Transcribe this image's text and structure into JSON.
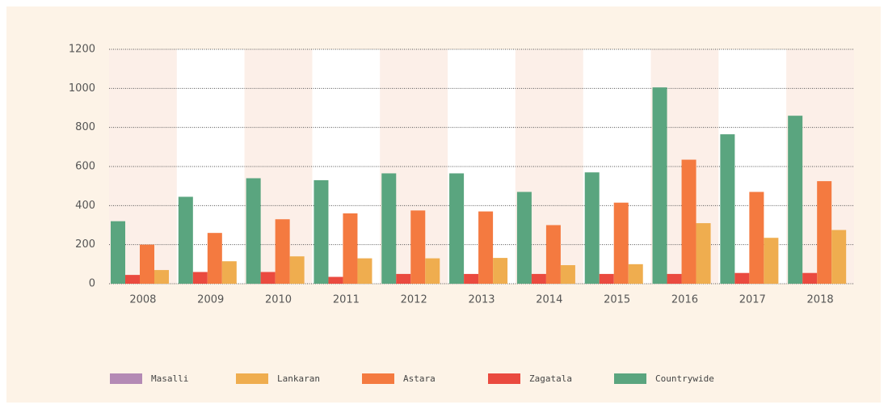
{
  "chart_data": {
    "type": "bar",
    "categories": [
      "2008",
      "2009",
      "2010",
      "2011",
      "2012",
      "2013",
      "2014",
      "2015",
      "2016",
      "2017",
      "2018"
    ],
    "series": [
      {
        "name": "Masalli",
        "color": "#b48ab5",
        "values": [
          0,
          0,
          0,
          0,
          0,
          0,
          0,
          0,
          0,
          0,
          0
        ]
      },
      {
        "name": "Lankaran",
        "color": "#efad4f",
        "values": [
          70,
          115,
          140,
          130,
          130,
          132,
          95,
          100,
          310,
          235,
          275
        ]
      },
      {
        "name": "Astara",
        "color": "#f47a40",
        "values": [
          200,
          260,
          330,
          360,
          375,
          370,
          300,
          415,
          635,
          470,
          525
        ]
      },
      {
        "name": "Zagatala",
        "color": "#ea4a3f",
        "values": [
          45,
          60,
          60,
          35,
          50,
          50,
          50,
          50,
          50,
          55,
          55
        ]
      },
      {
        "name": "Countrywide",
        "color": "#5aa57f",
        "values": [
          320,
          445,
          540,
          530,
          565,
          565,
          470,
          570,
          1005,
          765,
          860
        ]
      }
    ],
    "ylim": [
      0,
      1200
    ],
    "yticks": [
      0,
      200,
      400,
      600,
      800,
      1000,
      1200
    ],
    "grid": true,
    "legend": "bottom"
  }
}
